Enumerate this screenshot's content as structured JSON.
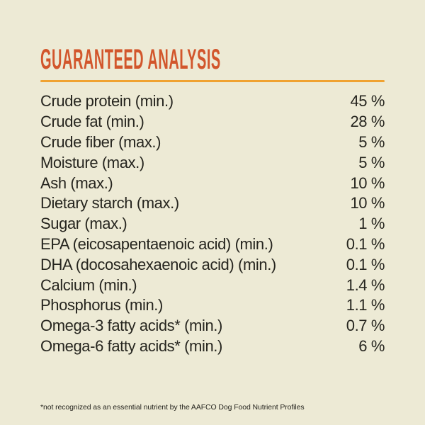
{
  "page": {
    "background_color": "#edead5",
    "text_color": "#26251f"
  },
  "header": {
    "title": "GUARANTEED ANALYSIS",
    "title_color": "#d2562c",
    "underline_color": "#f0a231"
  },
  "table": {
    "rows": [
      {
        "label": "Crude protein (min.)",
        "value": "45 %"
      },
      {
        "label": "Crude fat (min.)",
        "value": "28 %"
      },
      {
        "label": "Crude fiber (max.)",
        "value": "5 %"
      },
      {
        "label": "Moisture (max.)",
        "value": "5 %"
      },
      {
        "label": "Ash (max.)",
        "value": "10 %"
      },
      {
        "label": "Dietary starch (max.)",
        "value": "10 %"
      },
      {
        "label": "Sugar (max.)",
        "value": "1 %"
      },
      {
        "label": "EPA (eicosapentaenoic acid) (min.)",
        "value": "0.1 %"
      },
      {
        "label": "DHA (docosahexaenoic acid) (min.)",
        "value": "0.1 %"
      },
      {
        "label": "Calcium (min.)",
        "value": "1.4 %"
      },
      {
        "label": "Phosphorus (min.)",
        "value": "1.1 %"
      },
      {
        "label": "Omega-3 fatty acids* (min.)",
        "value": "0.7 %"
      },
      {
        "label": "Omega-6 fatty acids* (min.)",
        "value": "6 %"
      }
    ]
  },
  "footnote": {
    "text": "*not recognized as an essential nutrient by the AAFCO Dog Food Nutrient Profiles"
  }
}
